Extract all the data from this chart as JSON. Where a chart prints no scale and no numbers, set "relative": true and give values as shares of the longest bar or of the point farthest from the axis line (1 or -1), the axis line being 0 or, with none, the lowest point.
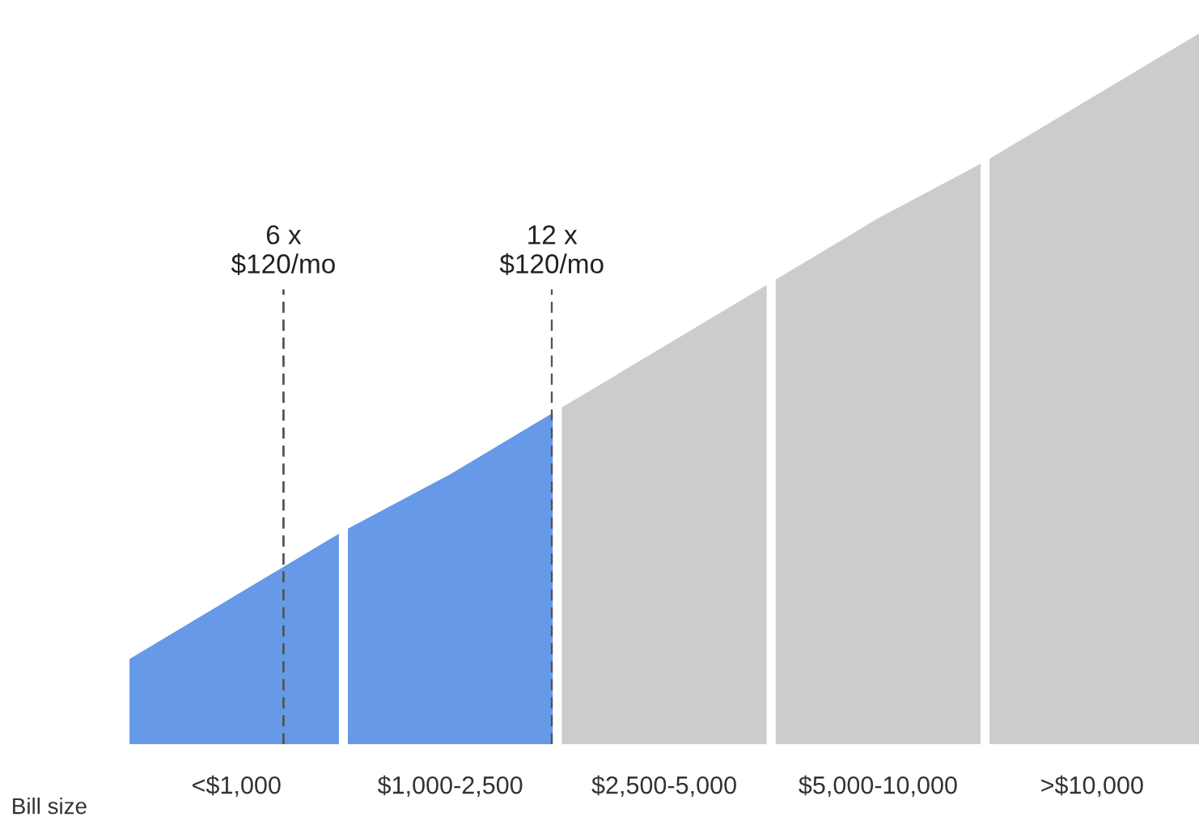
{
  "chart_data": {
    "type": "area",
    "relative": true,
    "xlabel": "Bill size",
    "categories": [
      null,
      "<$1,000",
      null,
      "$1,000-2,500",
      null,
      "$2,500-5,000",
      null,
      "$5,000-10,000",
      null,
      ">$10,000",
      null
    ],
    "series": [
      {
        "color": "#6699e8",
        "values": [
          0.12,
          0.21,
          0.3,
          0.38,
          0.47,
          null,
          null,
          null,
          null,
          null,
          null
        ]
      },
      {
        "color": "#cccccc",
        "values": [
          null,
          null,
          null,
          null,
          0.47,
          0.56,
          0.65,
          0.74,
          0.82,
          0.91,
          1.0
        ]
      }
    ],
    "grid": "x",
    "annotations": [
      "6 x\n$120/mo",
      "12 x\n$120/mo"
    ]
  }
}
